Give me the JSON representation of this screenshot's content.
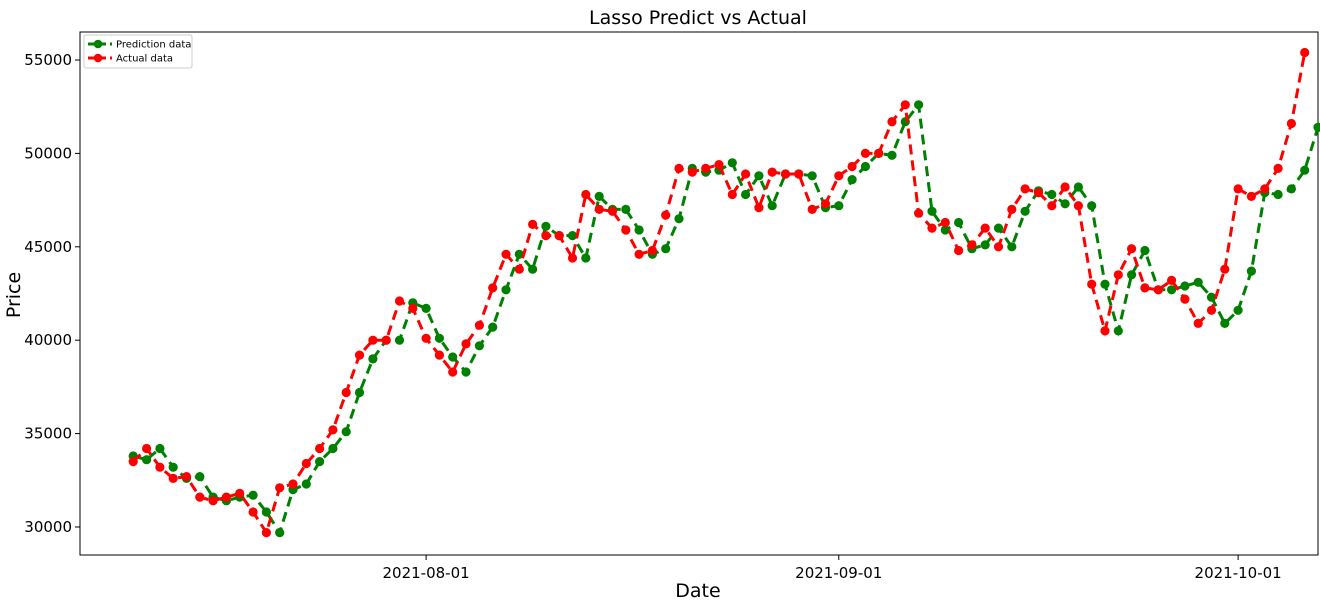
{
  "chart_data": {
    "type": "line",
    "title": "Lasso Predict vs Actual",
    "xlabel": "Date",
    "ylabel": "Price",
    "x_type": "date",
    "x_start": "2021-07-10",
    "x_step_days": 1,
    "xlim": [
      "2021-07-06",
      "2021-10-07"
    ],
    "x_ticks": [
      "2021-08-01",
      "2021-09-01",
      "2021-10-01"
    ],
    "ylim": [
      28500,
      56500
    ],
    "y_ticks": [
      30000,
      35000,
      40000,
      45000,
      50000,
      55000
    ],
    "grid": false,
    "legend_position": "top-left",
    "series": [
      {
        "name": "Prediction data",
        "color": "#008000",
        "values": [
          33800,
          33600,
          34200,
          33200,
          32600,
          32700,
          31600,
          31400,
          31600,
          31700,
          30800,
          29700,
          32000,
          32300,
          33500,
          34200,
          35100,
          37200,
          39000,
          40000,
          40000,
          42000,
          41700,
          40100,
          39100,
          38300,
          39700,
          40700,
          42700,
          44600,
          43800,
          46100,
          45600,
          45600,
          44400,
          47700,
          47000,
          47000,
          45900,
          44600,
          44900,
          46500,
          49200,
          49000,
          49100,
          49500,
          47800,
          48800,
          47200,
          48900,
          48900,
          48800,
          47100,
          47200,
          48600,
          49300,
          50000,
          49900,
          51700,
          52600,
          46900,
          45900,
          46300,
          44900,
          45100,
          46000,
          45000,
          46900,
          48000,
          47800,
          47300,
          48200,
          47200,
          43000,
          40500,
          43500,
          44800,
          42700,
          42700,
          42900,
          43100,
          42300,
          40900,
          41600,
          43700,
          47900,
          47800,
          48100,
          49100,
          51400
        ]
      },
      {
        "name": "Actual data",
        "color": "#ff0000",
        "values": [
          33500,
          34200,
          33200,
          32600,
          32700,
          31600,
          31400,
          31600,
          31800,
          30800,
          29700,
          32100,
          32300,
          33400,
          34200,
          35200,
          37200,
          39200,
          40000,
          40000,
          42100,
          41700,
          40100,
          39200,
          38300,
          39800,
          40800,
          42800,
          44600,
          43800,
          46200,
          45600,
          45600,
          44400,
          47800,
          47000,
          46900,
          45900,
          44600,
          44800,
          46700,
          49200,
          49000,
          49200,
          49400,
          47800,
          48900,
          47100,
          49000,
          48900,
          48900,
          47000,
          47300,
          48800,
          49300,
          50000,
          50000,
          51700,
          52600,
          46800,
          46000,
          46300,
          44800,
          45100,
          46000,
          45000,
          47000,
          48100,
          47900,
          47200,
          48200,
          47200,
          43000,
          40500,
          43500,
          44900,
          42800,
          42700,
          43200,
          42200,
          40900,
          41600,
          43800,
          48100,
          47700,
          48100,
          49200,
          51600,
          55400
        ]
      }
    ]
  }
}
